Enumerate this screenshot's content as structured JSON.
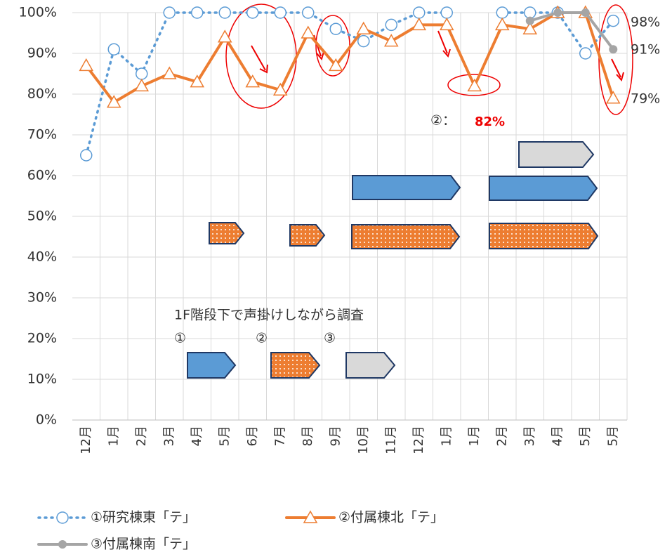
{
  "chart_data": {
    "type": "line",
    "categories": [
      "12月",
      "1月",
      "2月",
      "3月",
      "4月",
      "5月",
      "6月",
      "7月",
      "8月",
      "9月",
      "10月",
      "11月",
      "12月",
      "1月",
      "1月",
      "2月",
      "3月",
      "4月",
      "5月",
      "5月"
    ],
    "series": [
      {
        "name": "①研究棟東「テ」",
        "color": "#5b9bd5",
        "values": [
          65,
          91,
          85,
          100,
          100,
          100,
          100,
          100,
          100,
          96,
          93,
          97,
          100,
          100,
          null,
          100,
          100,
          100,
          90,
          98
        ]
      },
      {
        "name": "②付属棟北「テ」",
        "color": "#ed7d31",
        "values": [
          87,
          78,
          82,
          85,
          83,
          94,
          83,
          81,
          95,
          87,
          96,
          93,
          97,
          97,
          82,
          97,
          96,
          100,
          100,
          79
        ]
      },
      {
        "name": "③付属棟南「テ」",
        "color": "#a5a5a5",
        "values": [
          null,
          null,
          null,
          null,
          null,
          null,
          null,
          null,
          null,
          null,
          null,
          null,
          null,
          null,
          null,
          null,
          98,
          100,
          100,
          91
        ]
      }
    ],
    "ylim": [
      0,
      100
    ],
    "yticks": [
      {
        "value": 0,
        "label": "0%"
      },
      {
        "value": 10,
        "label": "10%"
      },
      {
        "value": 20,
        "label": "20%"
      },
      {
        "value": 30,
        "label": "30%"
      },
      {
        "value": 40,
        "label": "40%"
      },
      {
        "value": 50,
        "label": "50%"
      },
      {
        "value": 60,
        "label": "60%"
      },
      {
        "value": 70,
        "label": "70%"
      },
      {
        "value": 80,
        "label": "80%"
      },
      {
        "value": 90,
        "label": "90%"
      },
      {
        "value": 100,
        "label": "100%"
      }
    ],
    "grid": true,
    "annotations": [
      "98%",
      "91%",
      "79%"
    ],
    "callout_prefix": "②：",
    "callout_value": "82%",
    "note": "1F階段下で声掛けしながら調査",
    "markers": [
      "①",
      "②",
      "③"
    ]
  }
}
